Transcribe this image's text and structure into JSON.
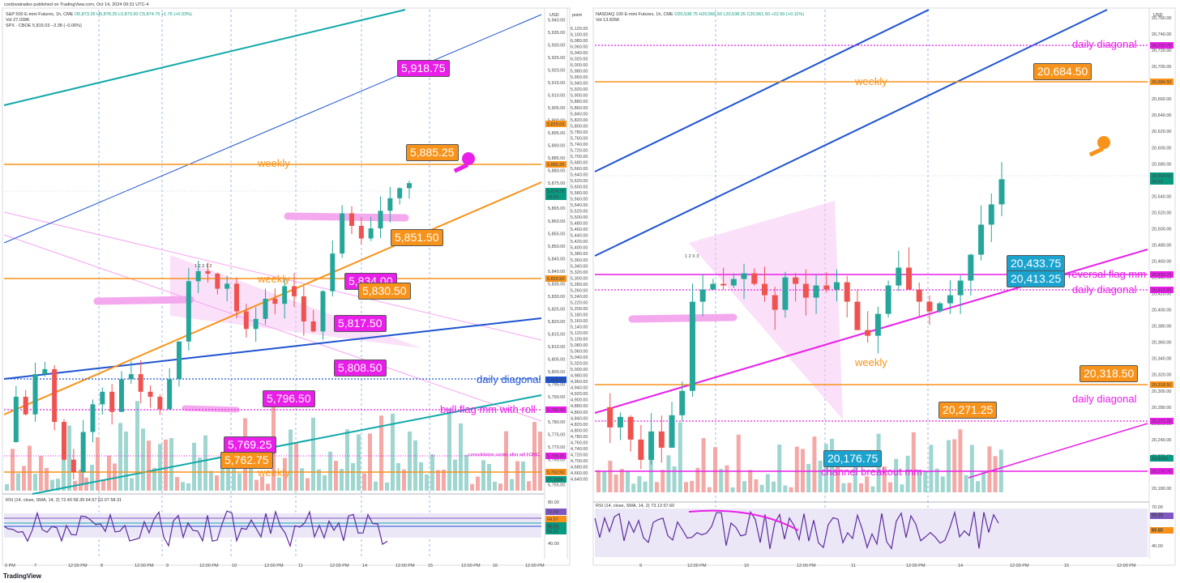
{
  "left_panel": {
    "title": "cordovatrades published on TradingView.com, Oct 14, 2024 09:31 UTC-4",
    "symbol": "S&P 500 E-mini Futures, 1h, CME",
    "ohlc": "O5,873.25 H5,878.25 L5,873.00 C5,874.75 +1.75 (+0.03%)",
    "vol": "Vol 27.039K",
    "spx": "SPX · CBOE 5,815.03 −3.38 (−0.06%)",
    "currency": "USD",
    "rsi_label": "RSI (14, close, SMA, 14, 2) 72.40 58.39 64.57 62.07 58.31",
    "x_labels": [
      "0 PM",
      "7",
      "12:00 PM",
      "8",
      "12:00 PM",
      "9",
      "12:00 PM",
      "10",
      "12:00 PM",
      "11",
      "12:00 PM",
      "14",
      "12:00 PM",
      "15",
      "12:00 PM",
      "16",
      "12:00 PM"
    ],
    "price_ticks": [
      "5,940.00",
      "5,935.00",
      "5,930.00",
      "5,925.00",
      "5,920.00",
      "5,915.00",
      "5,910.00",
      "5,905.00",
      "5,900.00",
      "5,895.00",
      "5,890.00",
      "5,885.00",
      "5,880.00",
      "5,875.00",
      "5,870.00",
      "5,865.00",
      "5,860.00",
      "5,855.00",
      "5,850.00",
      "5,845.00",
      "5,840.00",
      "5,835.00",
      "5,830.00",
      "5,825.00",
      "5,820.00",
      "5,815.00",
      "5,810.00",
      "5,805.00",
      "5,800.00",
      "5,795.00",
      "5,790.00",
      "5,785.00",
      "5,780.00",
      "5,775.00",
      "5,770.00",
      "5,765.00",
      "5,760.00",
      "5,755.00"
    ],
    "rsi_ticks": [
      "80.00",
      "60.00",
      "40.00"
    ],
    "badges": [
      "5,918.75",
      "5,885.25",
      "5,851.50",
      "5,834.00",
      "5,830.50",
      "5,817.50",
      "5,808.50",
      "5,796.50",
      "5,769.25",
      "5,762.75"
    ],
    "levels": {
      "weekly_1": "weekly",
      "weekly_2": "weekly",
      "weekly_3": "weekly",
      "daily_diagonal": "daily diagonal",
      "bull_flag": "bull flag mm with roll",
      "consolidation": "consolidation center after wtf FOMC"
    },
    "scale_tags": [
      "5,885.25",
      "5,874.75",
      "28:53",
      "5,829.50",
      "5,808.50",
      "5,796.50",
      "5,765.25",
      "5,762.50",
      "27.039K",
      "72.40",
      "64.57",
      "62.07",
      "58.31",
      "5,815.03"
    ],
    "wave_marks": "1  2  3   1  2"
  },
  "right_panel": {
    "symbol": "NASDAQ 100 E-mini Futures, 1h, CME",
    "ohlc": "O20,538.75 H20,566.50 L20,538.25 C20,561.50 +22.50 (+0.11%)",
    "vol": "Vol 13.826K",
    "currency": "USD",
    "corner": "point",
    "rsi_label": "RSI (14, close, SMA, 14, 2) 73.13 57.60",
    "x_labels": [
      "9",
      "12:00 PM",
      "10",
      "12:00 PM",
      "11",
      "12:00 PM",
      "14",
      "12:00 PM",
      "15",
      "12:00 PM"
    ],
    "price_ticks": [
      "20,760.00",
      "20,740.00",
      "20,720.00",
      "20,700.00",
      "20,680.00",
      "20,660.00",
      "20,640.00",
      "20,620.00",
      "20,600.00",
      "20,580.00",
      "20,560.00",
      "20,540.00",
      "20,520.00",
      "20,500.00",
      "20,480.00",
      "20,460.00",
      "20,440.00",
      "20,420.00",
      "20,400.00",
      "20,380.00",
      "20,360.00",
      "20,340.00",
      "20,320.00",
      "20,300.00",
      "20,280.00",
      "20,260.00",
      "20,240.00",
      "20,220.00",
      "20,200.00",
      "20,180.00"
    ],
    "mid_ticks": [
      "6,120.00",
      "6,100.00",
      "6,080.00",
      "6,060.00",
      "6,040.00",
      "6,020.00",
      "6,000.00",
      "5,980.00",
      "5,960.00",
      "5,940.00",
      "5,920.00",
      "5,900.00",
      "5,880.00",
      "5,860.00",
      "5,840.00",
      "5,820.00",
      "5,800.00",
      "5,780.00",
      "5,760.00",
      "5,740.00",
      "5,720.00",
      "5,700.00",
      "5,680.00",
      "5,660.00",
      "5,640.00",
      "5,620.00",
      "5,600.00",
      "5,580.00",
      "5,560.00",
      "5,540.00",
      "5,520.00",
      "5,500.00",
      "5,480.00",
      "5,460.00",
      "5,440.00",
      "5,420.00",
      "5,400.00",
      "5,380.00",
      "5,360.00",
      "5,340.00",
      "5,320.00",
      "5,300.00",
      "5,280.00",
      "5,260.00",
      "5,240.00",
      "5,220.00",
      "5,200.00",
      "5,180.00",
      "5,160.00",
      "5,140.00",
      "5,120.00",
      "5,100.00",
      "5,080.00",
      "5,060.00",
      "5,040.00",
      "5,020.00",
      "5,000.00",
      "4,980.00",
      "4,960.00",
      "4,940.00",
      "4,920.00",
      "4,900.00",
      "4,880.00",
      "4,860.00",
      "4,840.00",
      "4,820.00",
      "4,800.00",
      "4,780.00",
      "4,760.00",
      "4,740.00",
      "4,720.00",
      "4,700.00",
      "4,680.00",
      "4,660.00",
      "4,640.00"
    ],
    "rsi_ticks": [
      "70.00",
      "60.00",
      "50.00",
      "40.00"
    ],
    "badges": [
      "20,684.50",
      "20,433.75",
      "20,413.25",
      "20,318.50",
      "20,271.25",
      "20,176.75"
    ],
    "levels": {
      "daily_diagonal_1": "daily diagonal",
      "weekly": "weekly",
      "reversal": "reversal flag mm",
      "daily_diagonal_2": "daily diagonal",
      "weekly_2": "weekly",
      "daily_diagonal_3": "daily diagonal",
      "channel": "channel breakout mm"
    },
    "scale_tags": [
      "20,732.75",
      "20,684.50",
      "20,564.50",
      "28:53",
      "20,432.75",
      "20,413.25",
      "20,318.50",
      "20,271.25",
      "13.826K",
      "20,176.75",
      "73.13",
      "57.60"
    ],
    "wave_marks": "1  2   X   3"
  },
  "footer": "TradingView",
  "colors": {
    "up": "#26a69a",
    "down": "#ef5350",
    "weekly": "#f7931a",
    "magenta": "#e91ee9",
    "blue": "#1e53d0",
    "teal": "#10a8a8"
  },
  "chart_data": [
    {
      "type": "line",
      "title": "S&P 500 E-mini Futures, 1h, CME",
      "ylim": [
        5752,
        5944
      ],
      "series": [
        {
          "values": [
            5772,
            5790,
            5783,
            5799,
            5801,
            5780,
            5765,
            5760,
            5776,
            5787,
            5792,
            5784,
            5797,
            5799,
            5792,
            5790,
            5785,
            5797,
            5812,
            5836,
            5840,
            5839,
            5833,
            5835,
            5824,
            5817,
            5821,
            5829,
            5827,
            5834,
            5830,
            5820,
            5816,
            5832,
            5847,
            5863,
            5858,
            5853,
            5857,
            5864,
            5869,
            5873,
            5875
          ]
        }
      ],
      "annotations": [
        "5,918.75",
        "5,885.25",
        "5,851.50",
        "5,834.00",
        "5,830.50",
        "5,817.50",
        "5,808.50",
        "5,796.50",
        "5,769.25",
        "5,762.75"
      ]
    },
    {
      "type": "line",
      "title": "NASDAQ 100 E-mini Futures, 1h, CME",
      "ylim": [
        20165,
        20770
      ],
      "series": [
        {
          "values": [
            20280,
            20255,
            20268,
            20240,
            20215,
            20250,
            20230,
            20270,
            20300,
            20410,
            20425,
            20432,
            20430,
            20438,
            20445,
            20432,
            20418,
            20400,
            20440,
            20432,
            20415,
            20430,
            20425,
            20434,
            20410,
            20375,
            20368,
            20395,
            20430,
            20452,
            20425,
            20410,
            20398,
            20408,
            20418,
            20436,
            20468,
            20505,
            20530,
            20561
          ]
        }
      ],
      "annotations": [
        "20,684.50",
        "20,433.75",
        "20,413.25",
        "20,318.50",
        "20,271.25",
        "20,176.75"
      ]
    }
  ]
}
